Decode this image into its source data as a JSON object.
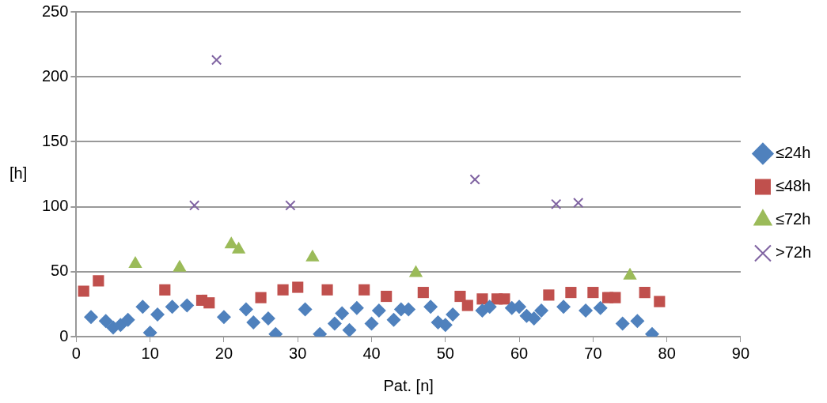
{
  "chart_data": {
    "type": "scatter",
    "xlabel": "Pat. [n]",
    "ylabel": "[h]",
    "xlim": [
      0,
      90
    ],
    "xticks": [
      0,
      10,
      20,
      30,
      40,
      50,
      60,
      70,
      80,
      90
    ],
    "ylim": [
      0,
      250
    ],
    "yticks": [
      0,
      50,
      100,
      150,
      200,
      250
    ],
    "grid": "y",
    "legend": "right",
    "series": [
      {
        "name": "≤24h",
        "color": "#4f81bd",
        "marker": "diamond",
        "x": [
          2,
          4,
          5,
          6,
          7,
          9,
          10,
          11,
          13,
          15,
          20,
          23,
          24,
          26,
          27,
          31,
          33,
          35,
          36,
          37,
          38,
          40,
          41,
          43,
          44,
          45,
          48,
          49,
          50,
          51,
          55,
          56,
          59,
          60,
          61,
          62,
          63,
          66,
          69,
          71,
          74,
          76,
          78
        ],
        "values": [
          15,
          12,
          7,
          9,
          13,
          23,
          3,
          17,
          23,
          24,
          15,
          21,
          11,
          14,
          2,
          21,
          2,
          10,
          18,
          5,
          22,
          10,
          20,
          13,
          21,
          21,
          23,
          11,
          9,
          17,
          20,
          23,
          22,
          23,
          16,
          14,
          20,
          23,
          20,
          22,
          10,
          12,
          2
        ]
      },
      {
        "name": "≤48h",
        "color": "#c0504d",
        "marker": "square",
        "x": [
          1,
          3,
          12,
          17,
          18,
          25,
          28,
          30,
          34,
          39,
          42,
          47,
          52,
          53,
          55,
          57,
          58,
          64,
          67,
          70,
          72,
          73,
          77,
          79
        ],
        "values": [
          35,
          43,
          36,
          28,
          26,
          30,
          36,
          38,
          36,
          36,
          31,
          34,
          31,
          24,
          29,
          29,
          29,
          32,
          34,
          34,
          30,
          30,
          34,
          27
        ]
      },
      {
        "name": "≤72h",
        "color": "#9bbb59",
        "marker": "triangle",
        "x": [
          8,
          14,
          21,
          22,
          32,
          46,
          75
        ],
        "values": [
          56,
          53,
          71,
          67,
          61,
          49,
          47
        ]
      },
      {
        "name": ">72h",
        "color": "#8064a2",
        "marker": "cross",
        "x": [
          16,
          19,
          29,
          54,
          65,
          68
        ],
        "values": [
          101,
          213,
          101,
          121,
          102,
          103
        ]
      }
    ]
  }
}
